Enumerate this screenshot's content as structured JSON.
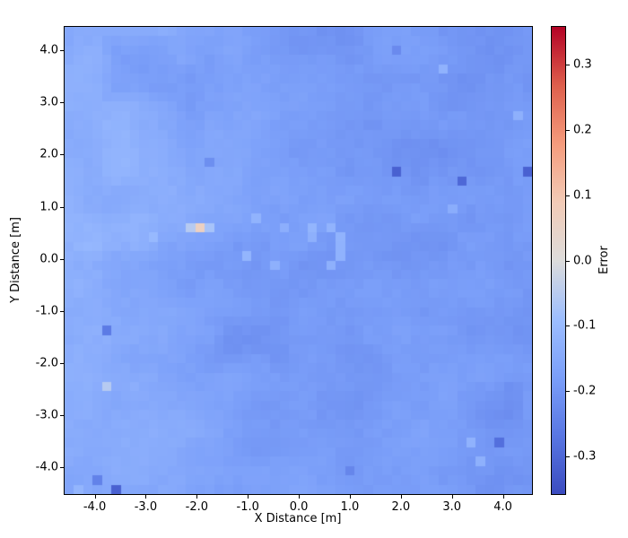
{
  "figure": {
    "background": "#ffffff",
    "spine_color": "#000000"
  },
  "chart_data": {
    "type": "heatmap",
    "title": "",
    "xlabel": "X Distance [m]",
    "ylabel": "Y Distance [m]",
    "xlim": [
      -4.59,
      4.57
    ],
    "ylim": [
      -4.51,
      4.45
    ],
    "x_tick_values": [
      -4,
      -3,
      -2,
      -1,
      0,
      1,
      2,
      3,
      4
    ],
    "x_tick_labels": [
      "-4.0",
      "-3.0",
      "-2.0",
      "-1.0",
      "0.0",
      "1.0",
      "2.0",
      "3.0",
      "4.0"
    ],
    "y_tick_values": [
      4,
      3,
      2,
      1,
      0,
      -1,
      -2,
      -3,
      -4
    ],
    "y_tick_labels": [
      "4.0",
      "3.0",
      "2.0",
      "1.0",
      "0.0",
      "-1.0",
      "-2.0",
      "-3.0",
      "-4.0"
    ],
    "grid": {
      "cols": 50,
      "rows": 50
    },
    "vmin": -0.358,
    "vmax": 0.358,
    "colormap": {
      "name": "coolwarm",
      "stops": [
        [
          0.0,
          "#3b4cc0"
        ],
        [
          0.125,
          "#5977e3"
        ],
        [
          0.25,
          "#7b9ff9"
        ],
        [
          0.375,
          "#9dbeff"
        ],
        [
          0.5,
          "#dddcdb"
        ],
        [
          0.625,
          "#f2cbb7"
        ],
        [
          0.75,
          "#f59c7d"
        ],
        [
          0.875,
          "#de604d"
        ],
        [
          1.0,
          "#b40426"
        ]
      ]
    },
    "colorbar": {
      "label": "Error",
      "tick_values": [
        0.3,
        0.2,
        0.1,
        0.0,
        -0.1,
        -0.2,
        -0.3
      ],
      "tick_labels": [
        "0.3",
        "0.2",
        "0.1",
        "0.0",
        "-0.1",
        "-0.2",
        "-0.3"
      ]
    },
    "field": {
      "base": -0.178,
      "xgrad": -0.01,
      "noise": {
        "seed": 7,
        "octaves": [
          {
            "lattice": 8,
            "amplitude": 0.013
          },
          {
            "lattice": 20,
            "amplitude": 0.01
          }
        ],
        "jitter": 0.006
      },
      "patches": [
        [
          -4.55,
          0.2,
          2.5,
          5.5,
          0.04
        ],
        [
          -3.9,
          3.9,
          1.7,
          1.5,
          0.024
        ],
        [
          -3.15,
          3.65,
          0.8,
          0.7,
          -0.048
        ],
        [
          -2.5,
          1.5,
          1.7,
          1.4,
          0.022
        ],
        [
          -3.6,
          0.45,
          1.0,
          0.45,
          0.025
        ],
        [
          2.4,
          1.3,
          2.0,
          1.7,
          -0.016
        ],
        [
          4.0,
          3.9,
          1.2,
          1.2,
          -0.018
        ],
        [
          0.3,
          4.25,
          1.5,
          0.55,
          -0.018
        ],
        [
          -1.05,
          -1.55,
          1.0,
          0.6,
          -0.028
        ],
        [
          -0.1,
          -0.7,
          1.4,
          1.2,
          -0.014
        ],
        [
          4.15,
          -3.9,
          1.2,
          1.4,
          -0.02
        ],
        [
          3.9,
          -2.75,
          0.6,
          0.5,
          -0.03
        ],
        [
          -2.3,
          -3.1,
          1.4,
          1.1,
          0.016
        ],
        [
          0.3,
          -2.6,
          1.6,
          1.3,
          -0.01
        ]
      ],
      "anomaly_cells": [
        [
          -1.93,
          0.62,
          0.065
        ],
        [
          -2.11,
          0.62,
          -0.055
        ],
        [
          -1.74,
          0.62,
          -0.075
        ],
        [
          -2.93,
          0.45,
          -0.105
        ],
        [
          -0.85,
          0.8,
          -0.12
        ],
        [
          -0.95,
          0.0,
          -0.115
        ],
        [
          -0.55,
          -0.05,
          -0.13
        ],
        [
          0.35,
          0.62,
          -0.115
        ],
        [
          0.55,
          0.62,
          -0.12
        ],
        [
          0.73,
          0.5,
          -0.12
        ],
        [
          0.73,
          0.3,
          -0.125
        ],
        [
          0.73,
          0.1,
          -0.125
        ],
        [
          0.55,
          -0.05,
          -0.13
        ],
        [
          0.2,
          0.45,
          -0.13
        ],
        [
          -0.2,
          0.62,
          -0.135
        ],
        [
          2.0,
          1.67,
          -0.315
        ],
        [
          3.25,
          1.5,
          -0.3
        ],
        [
          4.45,
          1.67,
          -0.315
        ],
        [
          -3.75,
          -1.3,
          -0.26
        ],
        [
          -3.8,
          -2.4,
          -0.055
        ],
        [
          -3.65,
          -4.45,
          -0.315
        ],
        [
          -4.0,
          -4.2,
          -0.245
        ],
        [
          -4.3,
          -4.35,
          -0.115
        ],
        [
          1.0,
          -4.0,
          -0.235
        ],
        [
          3.85,
          -3.5,
          -0.285
        ],
        [
          3.35,
          -3.6,
          -0.125
        ],
        [
          3.5,
          -3.85,
          -0.13
        ],
        [
          2.75,
          3.7,
          -0.125
        ],
        [
          4.35,
          2.75,
          -0.13
        ],
        [
          1.85,
          4.05,
          -0.225
        ],
        [
          -1.8,
          1.85,
          -0.215
        ],
        [
          3.1,
          0.9,
          -0.14
        ]
      ]
    }
  }
}
